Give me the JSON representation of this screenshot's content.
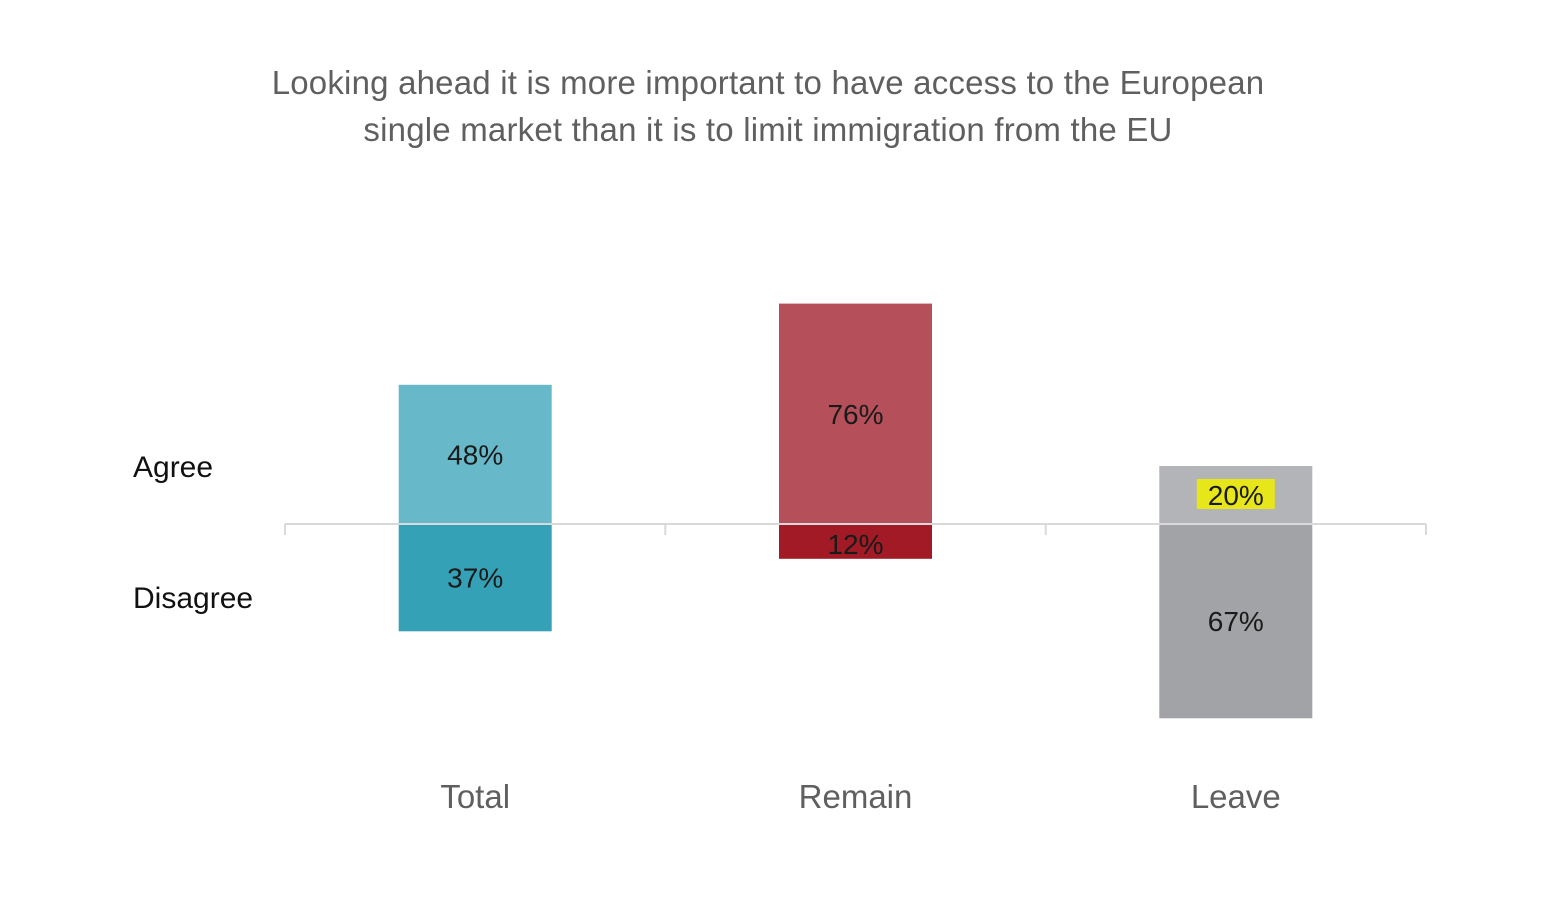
{
  "chart_data": {
    "type": "bar",
    "subtype": "diverging-stacked",
    "title_lines": [
      "Looking ahead it is more important to have access to the European",
      "single market than it is to limit immigration from the EU"
    ],
    "categories": [
      "Total",
      "Remain",
      "Leave"
    ],
    "row_labels": {
      "agree": "Agree",
      "disagree": "Disagree"
    },
    "series": [
      {
        "name": "Agree",
        "direction": "up",
        "values": [
          48,
          76,
          20
        ],
        "labels": [
          "48%",
          "76%",
          "20%"
        ],
        "colors": [
          "#67b8c8",
          "#b5505a",
          "#b3b4b7"
        ]
      },
      {
        "name": "Disagree",
        "direction": "down",
        "values": [
          37,
          12,
          67
        ],
        "labels": [
          "37%",
          "12%",
          "67%"
        ],
        "colors": [
          "#35a1b6",
          "#a11a25",
          "#a2a3a6"
        ]
      }
    ],
    "highlight": {
      "series": "Agree",
      "category": "Leave",
      "color": "#e7e61a"
    },
    "baseline_color": "#d9d9d9",
    "ylim": [
      -70,
      80
    ]
  }
}
